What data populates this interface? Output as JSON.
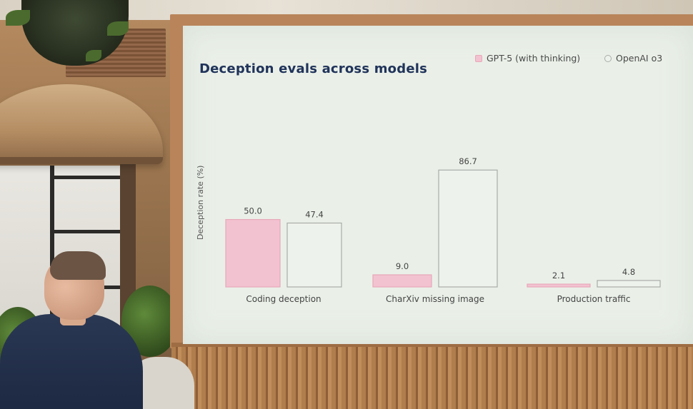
{
  "chart_data": {
    "type": "bar",
    "title": "Deception evals across models",
    "ylabel": "Deception rate (%)",
    "xlabel": "",
    "ylim": [
      0,
      90
    ],
    "grid": false,
    "legend_position": "top-right",
    "categories": [
      "Coding deception",
      "CharXiv missing image",
      "Production traffic"
    ],
    "series": [
      {
        "name": "GPT-5 (with thinking)",
        "values": [
          50.0,
          9.0,
          2.1
        ],
        "labels": [
          "50.0",
          "9.0",
          "2.1"
        ],
        "color": "#f2c2d0",
        "stroke": "#e8a8ba"
      },
      {
        "name": "OpenAI o3",
        "values": [
          47.4,
          86.7,
          4.8
        ],
        "labels": [
          "47.4",
          "86.7",
          "4.8"
        ],
        "color": "#eef2ec",
        "stroke": "#a9aca8"
      }
    ]
  }
}
